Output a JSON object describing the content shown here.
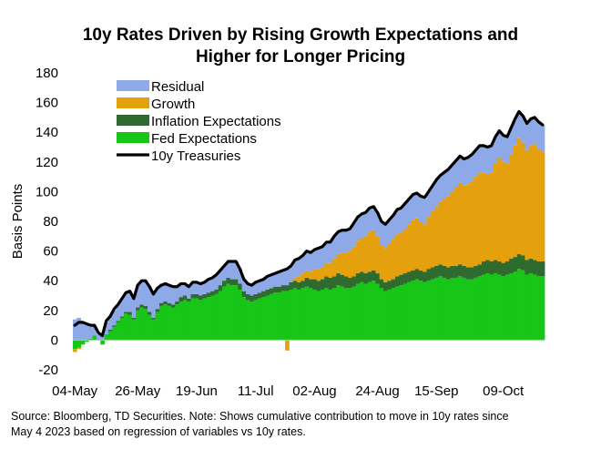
{
  "title_line1": "10y Rates Driven by Rising Growth Expectations and",
  "title_line2": "Higher for Longer Pricing",
  "source_line1": "Source: Bloomberg, TD Securities. Note: Shows cumulative contribution to move in 10y rates since",
  "source_line2": "May 4 2023 based on regression of variables vs 10y rates.",
  "colors": {
    "residual": "#8ea9e8",
    "growth": "#e5a00d",
    "inflation": "#2f6b2f",
    "fed": "#17c617",
    "treasuries": "#000000"
  },
  "chart_data": {
    "type": "bar",
    "stacked": true,
    "title": "10y Rates Driven by Rising Growth Expectations and Higher for Longer Pricing",
    "xlabel": "",
    "ylabel": "Basis Points",
    "ylim": [
      -20,
      180
    ],
    "yticks": [
      -20,
      0,
      20,
      40,
      60,
      80,
      100,
      120,
      140,
      160,
      180
    ],
    "xtick_labels": [
      "04-May",
      "26-May",
      "19-Jun",
      "11-Jul",
      "02-Aug",
      "24-Aug",
      "15-Sep",
      "09-Oct"
    ],
    "xtick_index": [
      0,
      16,
      31,
      46,
      61,
      77,
      92,
      109
    ],
    "legend": [
      "Residual",
      "Growth",
      "Inflation Expectations",
      "Fed Expectations",
      "10y Treasuries"
    ],
    "legend_position": "top-left",
    "fed": [
      -6,
      -5,
      -3,
      -1,
      1,
      3,
      0,
      -3,
      4,
      6,
      9,
      12,
      15,
      18,
      17,
      14,
      20,
      22,
      21,
      17,
      14,
      19,
      23,
      24,
      23,
      22,
      24,
      26,
      27,
      26,
      28,
      28,
      27,
      28,
      29,
      30,
      31,
      33,
      36,
      38,
      37,
      37,
      34,
      29,
      27,
      26,
      27,
      28,
      29,
      30,
      31,
      32,
      32,
      33,
      33,
      34,
      35,
      34,
      35,
      36,
      35,
      34,
      33,
      34,
      35,
      34,
      35,
      37,
      36,
      35,
      35,
      36,
      38,
      39,
      38,
      39,
      40,
      38,
      35,
      33,
      34,
      35,
      36,
      37,
      38,
      39,
      40,
      41,
      40,
      39,
      40,
      41,
      42,
      43,
      42,
      41,
      42,
      42,
      43,
      42,
      41,
      41,
      42,
      43,
      44,
      45,
      44,
      45,
      44,
      43,
      44,
      45,
      46,
      48,
      47,
      44,
      45,
      44,
      43,
      43
    ],
    "inflation": [
      0,
      0,
      0,
      0,
      0,
      0,
      0,
      0,
      0,
      1,
      1,
      1,
      1,
      1,
      2,
      1,
      2,
      2,
      2,
      2,
      1,
      2,
      2,
      2,
      2,
      2,
      2,
      3,
      3,
      2,
      3,
      3,
      3,
      3,
      3,
      3,
      3,
      4,
      4,
      4,
      4,
      4,
      4,
      4,
      4,
      4,
      4,
      4,
      4,
      4,
      4,
      4,
      4,
      4,
      4,
      5,
      5,
      5,
      5,
      6,
      6,
      7,
      7,
      7,
      8,
      8,
      8,
      8,
      8,
      8,
      7,
      7,
      7,
      7,
      7,
      7,
      7,
      7,
      6,
      6,
      6,
      6,
      7,
      7,
      7,
      7,
      7,
      7,
      7,
      7,
      8,
      8,
      8,
      8,
      8,
      8,
      8,
      8,
      8,
      8,
      8,
      8,
      8,
      8,
      9,
      9,
      9,
      9,
      9,
      9,
      9,
      10,
      10,
      10,
      10,
      10,
      10,
      10,
      10,
      10
    ],
    "growth": [
      -2,
      -1,
      0,
      0,
      0,
      0,
      0,
      0,
      0,
      0,
      0,
      0,
      0,
      0,
      0,
      0,
      0,
      0,
      0,
      0,
      0,
      0,
      0,
      0,
      0,
      0,
      0,
      0,
      0,
      0,
      0,
      0,
      0,
      0,
      0,
      0,
      0,
      0,
      0,
      0,
      0,
      0,
      0,
      0,
      0,
      0,
      0,
      0,
      0,
      0,
      0,
      0,
      0,
      0,
      -7,
      0,
      2,
      4,
      5,
      5,
      5,
      7,
      8,
      8,
      9,
      10,
      12,
      13,
      15,
      16,
      18,
      20,
      22,
      23,
      25,
      27,
      27,
      25,
      23,
      23,
      25,
      27,
      28,
      28,
      30,
      32,
      34,
      34,
      33,
      32,
      35,
      38,
      40,
      42,
      45,
      48,
      50,
      53,
      55,
      54,
      56,
      58,
      60,
      62,
      60,
      58,
      60,
      65,
      70,
      68,
      66,
      70,
      75,
      78,
      76,
      74,
      76,
      78,
      76,
      74
    ],
    "residual": [
      14,
      15,
      12,
      10,
      8,
      6,
      4,
      3,
      8,
      9,
      10,
      11,
      12,
      13,
      14,
      13,
      15,
      16,
      17,
      17,
      16,
      14,
      13,
      13,
      12,
      11,
      10,
      9,
      8,
      8,
      8,
      8,
      8,
      8,
      9,
      9,
      10,
      10,
      10,
      11,
      12,
      12,
      10,
      8,
      7,
      7,
      8,
      8,
      8,
      9,
      9,
      9,
      10,
      10,
      11,
      11,
      12,
      12,
      12,
      13,
      13,
      13,
      14,
      14,
      14,
      14,
      15,
      15,
      15,
      15,
      15,
      16,
      16,
      16,
      16,
      16,
      16,
      16,
      16,
      16,
      16,
      16,
      17,
      17,
      17,
      17,
      17,
      17,
      17,
      17,
      17,
      17,
      18,
      18,
      18,
      18,
      18,
      18,
      18,
      18,
      18,
      18,
      18,
      18,
      18,
      18,
      18,
      18,
      18,
      18,
      18,
      18,
      18,
      18,
      18,
      18,
      18,
      18,
      18,
      18
    ],
    "treasuries": [
      10,
      12,
      12,
      11,
      10,
      10,
      5,
      3,
      13,
      16,
      21,
      24,
      28,
      32,
      33,
      28,
      37,
      40,
      40,
      36,
      31,
      35,
      37,
      38,
      37,
      36,
      36,
      38,
      38,
      36,
      39,
      39,
      38,
      39,
      41,
      42,
      44,
      47,
      50,
      53,
      53,
      53,
      48,
      41,
      38,
      37,
      39,
      40,
      41,
      43,
      44,
      45,
      46,
      47,
      48,
      50,
      54,
      55,
      57,
      60,
      59,
      61,
      62,
      63,
      66,
      66,
      70,
      73,
      74,
      74,
      75,
      79,
      83,
      85,
      86,
      89,
      90,
      86,
      80,
      78,
      81,
      84,
      88,
      89,
      92,
      95,
      98,
      99,
      97,
      96,
      100,
      104,
      108,
      111,
      113,
      115,
      118,
      121,
      124,
      122,
      123,
      125,
      128,
      131,
      131,
      130,
      131,
      137,
      141,
      138,
      137,
      143,
      149,
      154,
      151,
      146,
      149,
      150,
      147,
      145
    ]
  }
}
